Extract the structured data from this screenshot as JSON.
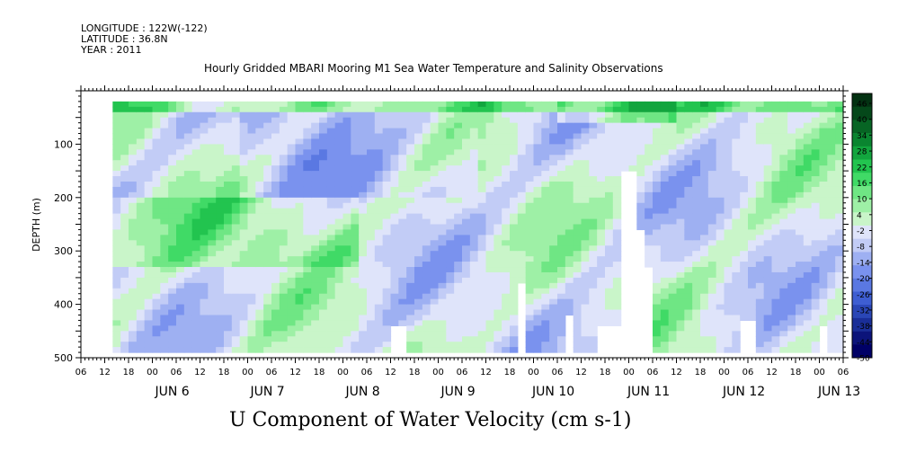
{
  "header": {
    "longitude": "LONGITUDE : 122W(-122)",
    "latitude": "LATITUDE : 36.8N",
    "year": "YEAR : 2011"
  },
  "chart_data": {
    "type": "heatmap",
    "title": "Hourly Gridded MBARI Mooring M1 Sea Water Temperature and Salinity Observations",
    "variable_label": "U Component of Water Velocity (cm s-1)",
    "ylabel": "DEPTH (m)",
    "ylim": [
      500,
      0
    ],
    "y_ticks": [
      100,
      200,
      300,
      400,
      500
    ],
    "x_hour_ticks": [
      "06",
      "12",
      "18",
      "00",
      "06",
      "12",
      "18",
      "00",
      "06",
      "12",
      "18",
      "00",
      "06",
      "12",
      "18",
      "00",
      "06",
      "12",
      "18",
      "00",
      "06",
      "12",
      "18",
      "00",
      "06",
      "12",
      "18",
      "00",
      "06",
      "12",
      "18",
      "00",
      "06"
    ],
    "x_day_labels": [
      "JUN  6",
      "JUN  7",
      "JUN  8",
      "JUN  9",
      "JUN 10",
      "JUN 11",
      "JUN 12",
      "JUN 13"
    ],
    "x_start": "2011-06-05T06:00",
    "x_end": "2011-06-13T06:00",
    "data_start": "2011-06-05T14:00",
    "data_depth_range_m": [
      20,
      490
    ],
    "colorbar": {
      "ticks": [
        "46",
        "40",
        "34",
        "28",
        "22",
        "16",
        "10",
        "4",
        "-2",
        "-8",
        "-14",
        "-20",
        "-26",
        "-32",
        "-38",
        "-44",
        "-50"
      ],
      "range": [
        -50,
        50
      ],
      "colors": [
        "#000066",
        "#0c147a",
        "#1a2e98",
        "#2a46b6",
        "#3e5ed2",
        "#5a78e2",
        "#7a92ee",
        "#9eb0f2",
        "#c2ccf6",
        "#dfe4fa",
        "#c9f5c9",
        "#9ef0a6",
        "#6fe684",
        "#40da66",
        "#22c44f",
        "#12a53e",
        "#0a8530",
        "#076524",
        "#05481a",
        "#033212"
      ]
    },
    "features": {
      "colorbar_gap_at": 0,
      "missing_data_blocks": [
        "near JUN 10 06",
        "JUN 11 00-12 below 150 m",
        "near bottom at scattered times"
      ]
    }
  }
}
